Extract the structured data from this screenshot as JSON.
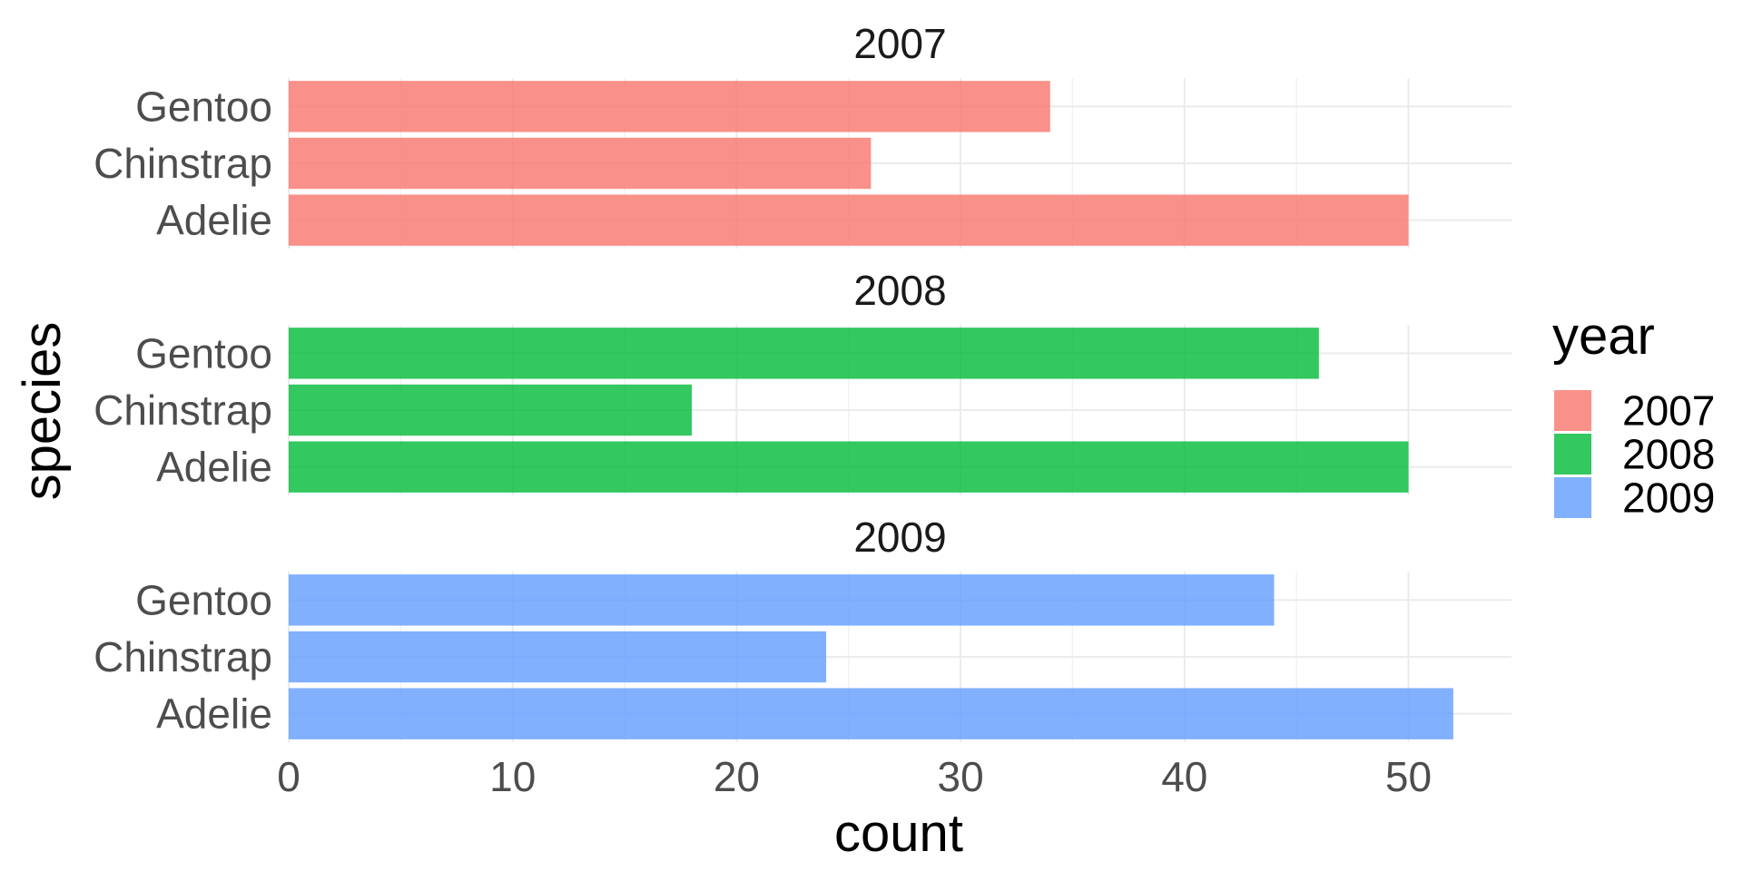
{
  "chart_data": {
    "type": "bar",
    "orientation": "horizontal",
    "facet_by": "year",
    "categories": [
      "Adelie",
      "Chinstrap",
      "Gentoo"
    ],
    "panels": [
      {
        "title": "2007",
        "values": [
          50,
          26,
          34
        ],
        "color": "#F8766D"
      },
      {
        "title": "2008",
        "values": [
          50,
          18,
          46
        ],
        "color": "#00BA38"
      },
      {
        "title": "2009",
        "values": [
          52,
          24,
          44
        ],
        "color": "#619CFF"
      }
    ],
    "xlabel": "count",
    "ylabel": "species",
    "xlim": [
      0,
      54.6
    ],
    "xticks": [
      0,
      10,
      20,
      30,
      40,
      50
    ],
    "grid": true,
    "bar_opacity": 0.8,
    "legend": {
      "title": "year",
      "position": "right",
      "items": [
        {
          "label": "2007",
          "color": "#F8766D"
        },
        {
          "label": "2008",
          "color": "#00BA38"
        },
        {
          "label": "2009",
          "color": "#619CFF"
        }
      ]
    }
  }
}
